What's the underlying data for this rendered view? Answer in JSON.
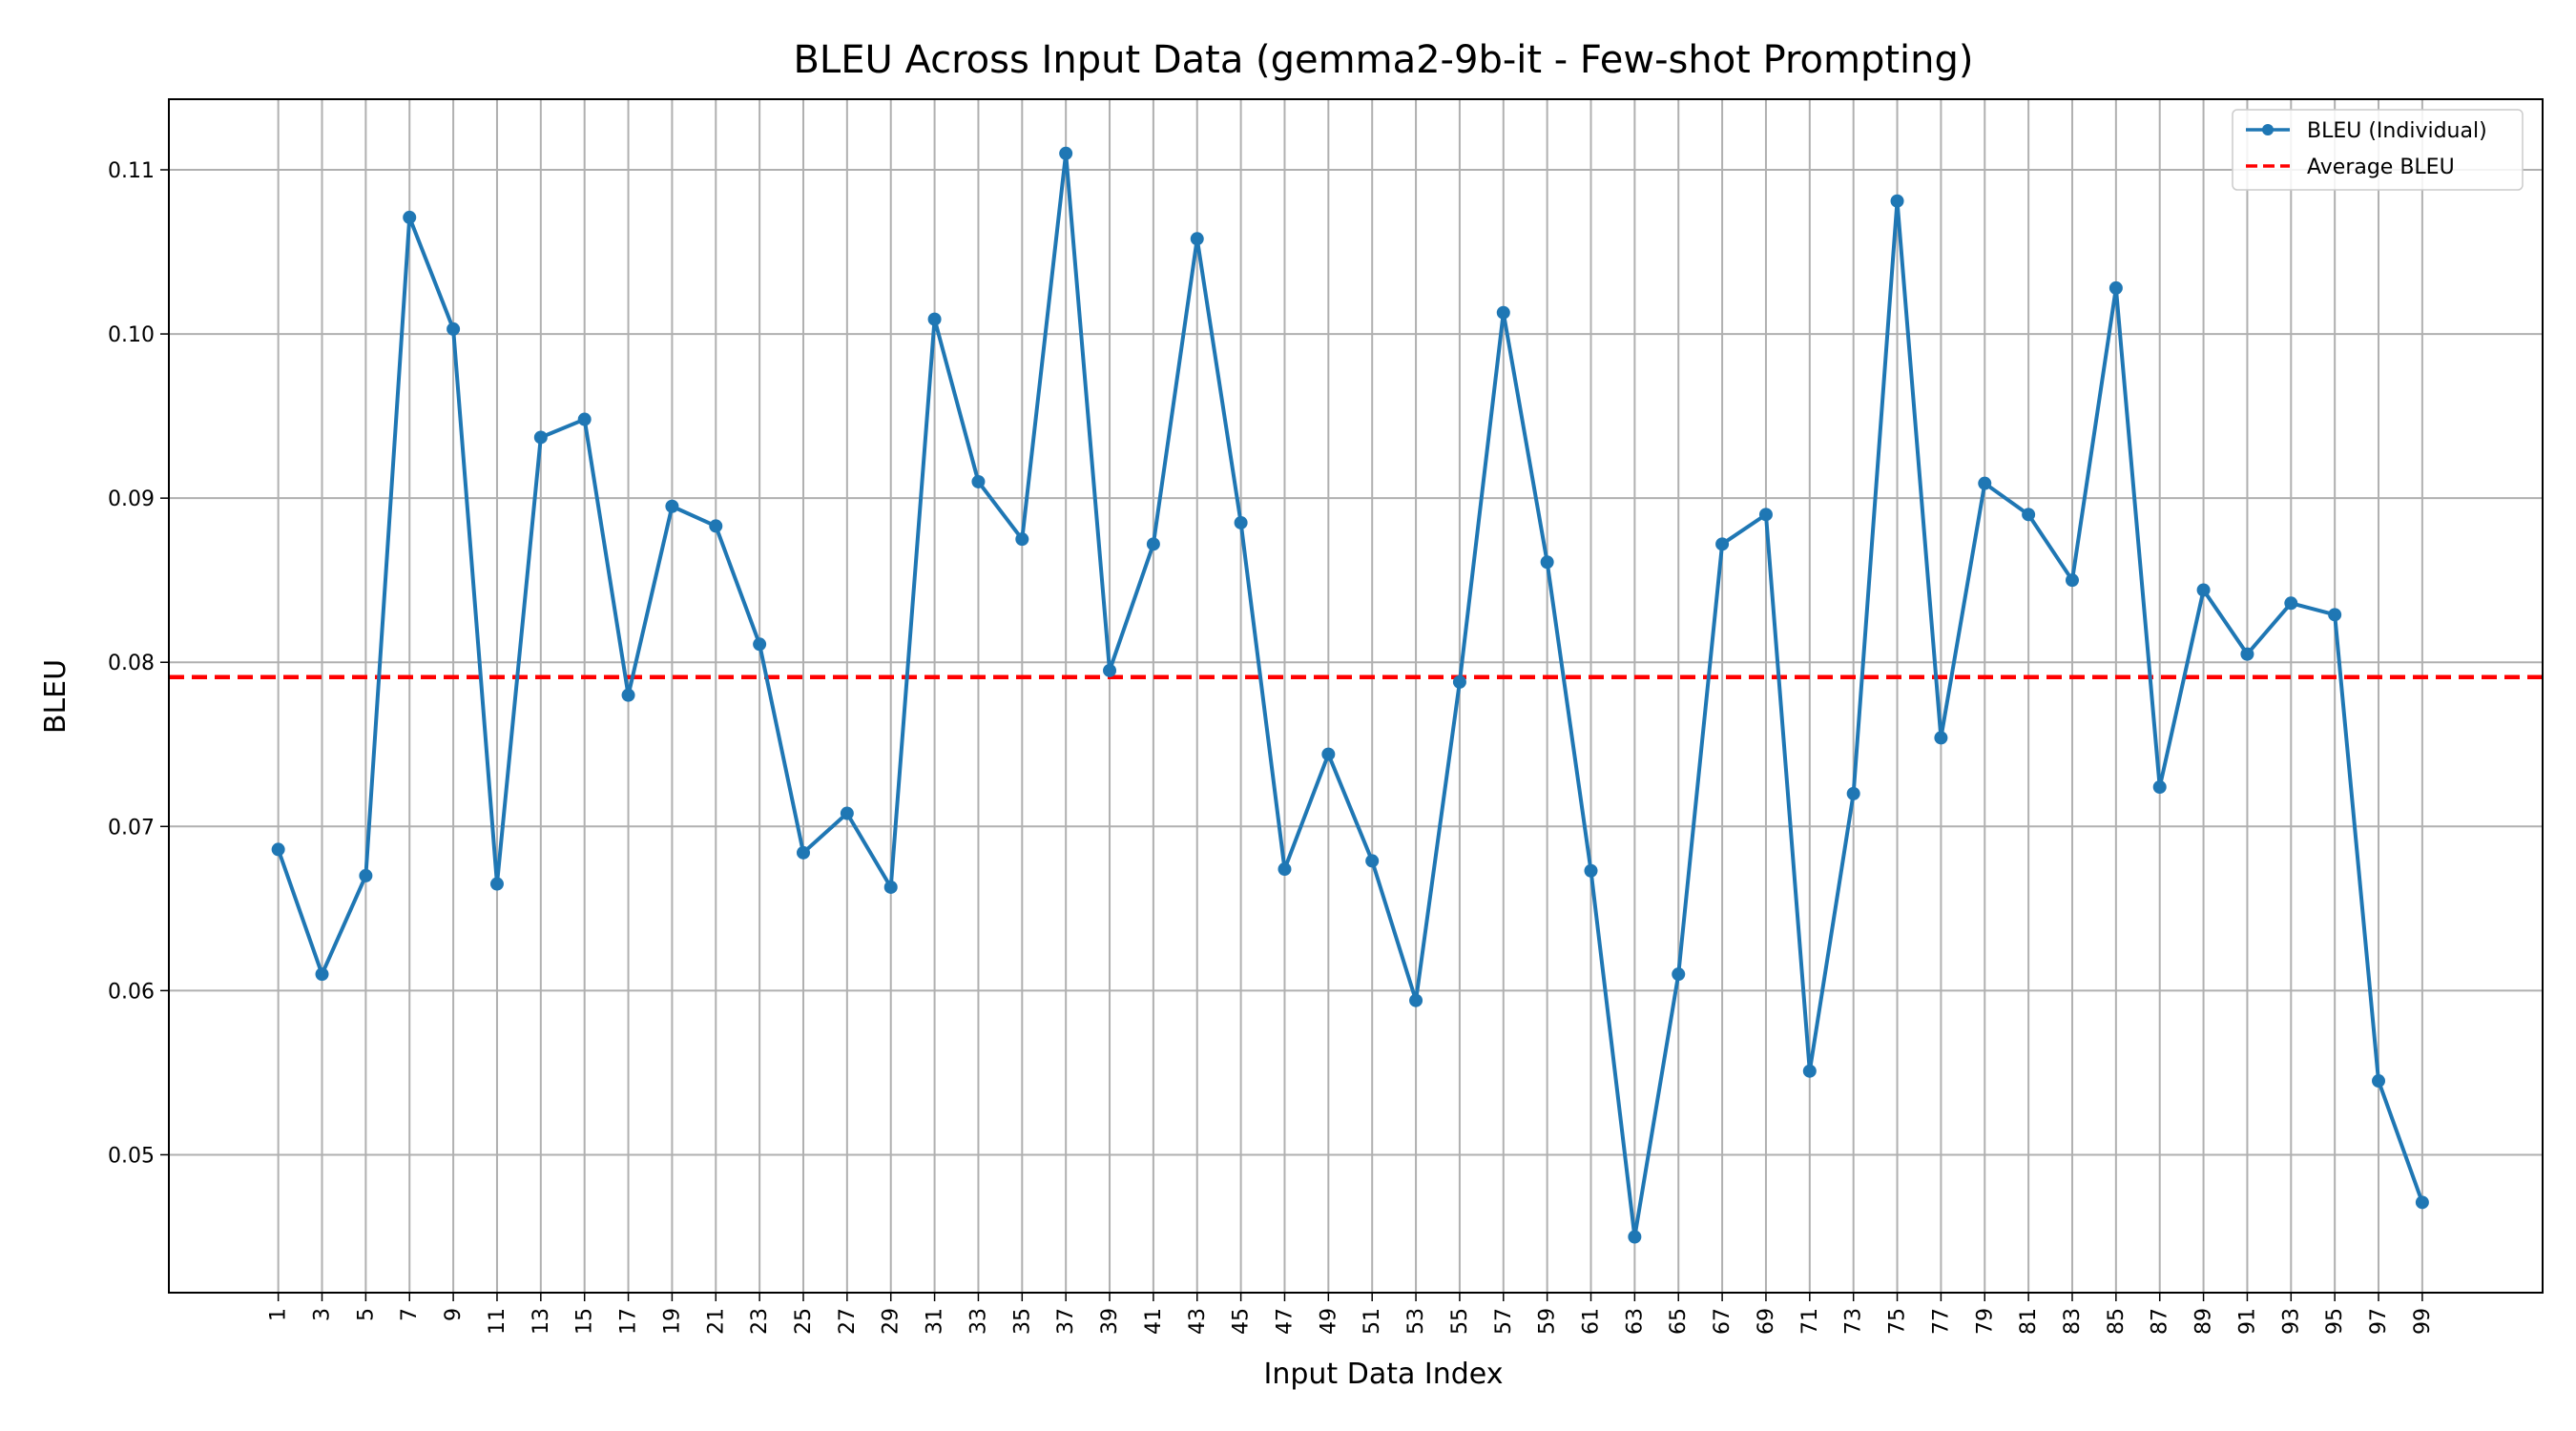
{
  "chart_data": {
    "type": "line",
    "title": "BLEU Across Input Data (gemma2-9b-it - Few-shot Prompting)",
    "xlabel": "Input Data Index",
    "ylabel": "BLEU",
    "x": [
      1,
      3,
      5,
      7,
      9,
      11,
      13,
      15,
      17,
      19,
      21,
      23,
      25,
      27,
      29,
      31,
      33,
      35,
      37,
      39,
      41,
      43,
      45,
      47,
      49,
      51,
      53,
      55,
      57,
      59,
      61,
      63,
      65,
      67,
      69,
      71,
      73,
      75,
      77,
      79,
      81,
      83,
      85,
      87,
      89,
      91,
      93,
      95,
      97,
      99
    ],
    "x_ticks": [
      "1",
      "3",
      "5",
      "7",
      "9",
      "11",
      "13",
      "15",
      "17",
      "19",
      "21",
      "23",
      "25",
      "27",
      "29",
      "31",
      "33",
      "35",
      "37",
      "39",
      "41",
      "43",
      "45",
      "47",
      "49",
      "51",
      "53",
      "55",
      "57",
      "59",
      "61",
      "63",
      "65",
      "67",
      "69",
      "71",
      "73",
      "75",
      "77",
      "79",
      "81",
      "83",
      "85",
      "87",
      "89",
      "91",
      "93",
      "95",
      "97",
      "99"
    ],
    "y_ticks": [
      "0.05",
      "0.06",
      "0.07",
      "0.08",
      "0.09",
      "0.10",
      "0.11"
    ],
    "xlim": [
      -4.0,
      104.5
    ],
    "ylim": [
      0.0416,
      0.1143
    ],
    "grid": true,
    "legend_position": "top-right",
    "series": [
      {
        "name": "BLEU (Individual)",
        "style": "solid-with-markers",
        "color": "#1f77b4",
        "values": [
          0.0686,
          0.061,
          0.067,
          0.1071,
          0.1003,
          0.0665,
          0.0937,
          0.0948,
          0.078,
          0.0895,
          0.0883,
          0.0811,
          0.0684,
          0.0708,
          0.0663,
          0.1009,
          0.091,
          0.0875,
          0.111,
          0.0795,
          0.0872,
          0.1058,
          0.0885,
          0.0674,
          0.0744,
          0.0679,
          0.0594,
          0.0788,
          0.1013,
          0.0861,
          0.0673,
          0.045,
          0.061,
          0.0872,
          0.089,
          0.0551,
          0.072,
          0.1081,
          0.0754,
          0.0909,
          0.089,
          0.085,
          0.1028,
          0.0724,
          0.0844,
          0.0805,
          0.0836,
          0.0829,
          0.0545,
          0.0471
        ]
      },
      {
        "name": "Average BLEU",
        "style": "dashed",
        "color": "#ff0000",
        "value": 0.0791
      }
    ]
  }
}
